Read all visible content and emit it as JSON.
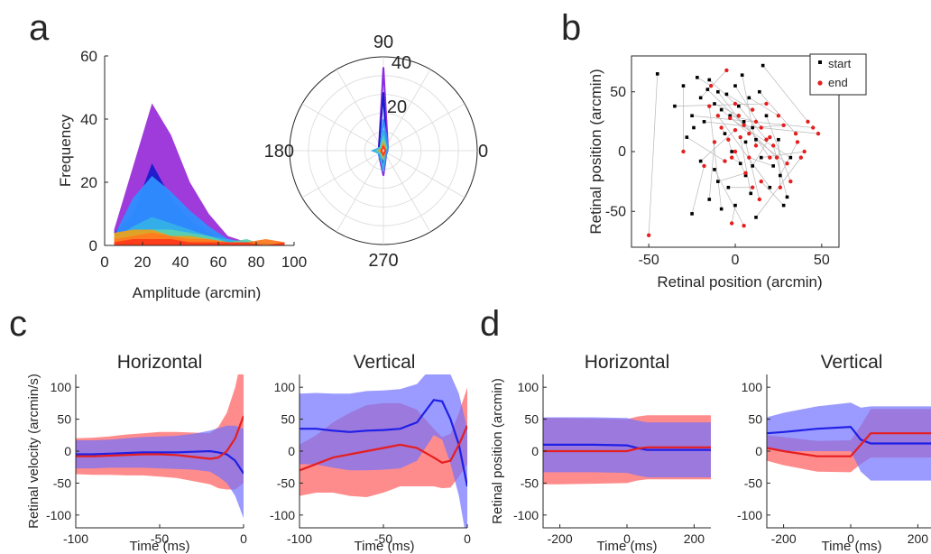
{
  "panels": {
    "a": "a",
    "b": "b",
    "c": "c",
    "d": "d"
  },
  "colors": {
    "blue": "#1f1fe6",
    "red": "#e61e1e",
    "blue_band": "#7070ff",
    "red_band": "#ff8080",
    "purple_fill": "#9b30d9"
  },
  "chart_data": [
    {
      "id": "a_hist",
      "type": "area",
      "title": "",
      "xlabel": "Amplitude (arcmin)",
      "ylabel": "Frequency",
      "xlim": [
        0,
        100
      ],
      "ylim": [
        0,
        60
      ],
      "xticks": [
        0,
        20,
        40,
        60,
        80,
        100
      ],
      "yticks": [
        0,
        20,
        40,
        60
      ],
      "x": [
        5,
        15,
        25,
        35,
        45,
        55,
        65,
        75,
        85,
        95
      ],
      "series": [
        {
          "color": "#9b30d9",
          "values": [
            5,
            25,
            45,
            35,
            20,
            10,
            3,
            1,
            0,
            0
          ]
        },
        {
          "color": "#1a1acc",
          "values": [
            4,
            10,
            26,
            15,
            8,
            4,
            1,
            0,
            0,
            0
          ]
        },
        {
          "color": "#2f8fff",
          "values": [
            3,
            15,
            22,
            17,
            11,
            6,
            2,
            1,
            0,
            0
          ]
        },
        {
          "color": "#35b0e8",
          "values": [
            2,
            6,
            9,
            7,
            5,
            3,
            2,
            1,
            1,
            0
          ]
        },
        {
          "color": "#5ad0b0",
          "values": [
            2,
            4,
            5,
            5,
            4,
            3,
            1,
            2,
            0,
            0
          ]
        },
        {
          "color": "#e8a020",
          "values": [
            4,
            5,
            5,
            3,
            3,
            2,
            1,
            1,
            0,
            0
          ]
        },
        {
          "color": "#ff7a20",
          "values": [
            2,
            3,
            4,
            3,
            2,
            2,
            1,
            1,
            2,
            1
          ]
        },
        {
          "color": "#ff3a1a",
          "values": [
            1,
            2,
            2,
            2,
            1,
            1,
            1,
            1,
            0,
            1
          ]
        }
      ]
    },
    {
      "id": "a_polar",
      "type": "line",
      "title": "",
      "angle_labels": [
        "90",
        "180",
        "0",
        "270"
      ],
      "rtick_labels": [
        "20",
        "40"
      ],
      "rmax": 45,
      "angles": [
        0,
        45,
        90,
        135,
        180,
        225,
        270,
        315
      ],
      "series": [
        {
          "color": "#8a2be2",
          "values": [
            2,
            3,
            40,
            3,
            2,
            3,
            12,
            2
          ]
        },
        {
          "color": "#1a1acc",
          "values": [
            1,
            2,
            28,
            3,
            1,
            2,
            6,
            1
          ]
        },
        {
          "color": "#2f8fff",
          "values": [
            2,
            3,
            15,
            2,
            2,
            3,
            8,
            2
          ]
        },
        {
          "color": "#35b0e8",
          "values": [
            1,
            2,
            10,
            2,
            5,
            2,
            10,
            1
          ]
        },
        {
          "color": "#5ad0b0",
          "values": [
            1,
            2,
            6,
            2,
            3,
            2,
            4,
            1
          ]
        },
        {
          "color": "#e8a020",
          "values": [
            1,
            1,
            4,
            1,
            2,
            1,
            3,
            1
          ]
        },
        {
          "color": "#ff3a1a",
          "values": [
            1,
            1,
            2,
            1,
            1,
            1,
            2,
            1
          ]
        }
      ]
    },
    {
      "id": "b_scatter",
      "type": "scatter",
      "title": "",
      "xlabel": "Retinal position (arcmin)",
      "ylabel": "Retinal position (arcmin)",
      "xlim": [
        -60,
        60
      ],
      "ylim": [
        -80,
        80
      ],
      "xticks": [
        -50,
        0,
        50
      ],
      "yticks": [
        50,
        0,
        -50
      ],
      "legend": {
        "position": "top-right",
        "entries": [
          "start",
          "end"
        ]
      },
      "series": [
        {
          "name": "start",
          "color": "#000000",
          "points": [
            [
              -45,
              65
            ],
            [
              -30,
              55
            ],
            [
              -22,
              62
            ],
            [
              -20,
              45
            ],
            [
              -15,
              60
            ],
            [
              -12,
              40
            ],
            [
              -10,
              50
            ],
            [
              -8,
              35
            ],
            [
              -5,
              48
            ],
            [
              -3,
              30
            ],
            [
              0,
              55
            ],
            [
              2,
              38
            ],
            [
              5,
              25
            ],
            [
              8,
              45
            ],
            [
              10,
              20
            ],
            [
              12,
              10
            ],
            [
              14,
              50
            ],
            [
              15,
              -5
            ],
            [
              -25,
              30
            ],
            [
              -18,
              25
            ],
            [
              -6,
              15
            ],
            [
              -2,
              0
            ],
            [
              3,
              -10
            ],
            [
              6,
              -20
            ],
            [
              9,
              -35
            ],
            [
              -10,
              -25
            ],
            [
              -15,
              -40
            ],
            [
              -25,
              -52
            ],
            [
              20,
              -30
            ],
            [
              28,
              -45
            ],
            [
              30,
              -38
            ],
            [
              25,
              10
            ],
            [
              18,
              30
            ],
            [
              -12,
              -15
            ],
            [
              0,
              -45
            ],
            [
              12,
              -55
            ],
            [
              16,
              72
            ],
            [
              -35,
              38
            ],
            [
              -28,
              12
            ],
            [
              22,
              -12
            ],
            [
              4,
              64
            ],
            [
              -8,
              -48
            ],
            [
              -20,
              -8
            ],
            [
              10,
              -12
            ],
            [
              -4,
              -30
            ],
            [
              26,
              -20
            ],
            [
              32,
              -5
            ],
            [
              -16,
              52
            ],
            [
              6,
              8
            ],
            [
              -24,
              20
            ]
          ]
        },
        {
          "name": "end",
          "color": "#e61e1e",
          "points": [
            [
              -50,
              -70
            ],
            [
              -30,
              0
            ],
            [
              -14,
              55
            ],
            [
              -5,
              68
            ],
            [
              0,
              40
            ],
            [
              2,
              30
            ],
            [
              5,
              22
            ],
            [
              8,
              15
            ],
            [
              10,
              35
            ],
            [
              12,
              25
            ],
            [
              15,
              20
            ],
            [
              18,
              10
            ],
            [
              20,
              -5
            ],
            [
              25,
              30
            ],
            [
              28,
              22
            ],
            [
              30,
              -10
            ],
            [
              35,
              15
            ],
            [
              40,
              0
            ],
            [
              45,
              20
            ],
            [
              48,
              15
            ],
            [
              -8,
              20
            ],
            [
              -4,
              10
            ],
            [
              -2,
              -5
            ],
            [
              0,
              0
            ],
            [
              3,
              12
            ],
            [
              6,
              -18
            ],
            [
              -12,
              8
            ],
            [
              -18,
              -12
            ],
            [
              -10,
              30
            ],
            [
              15,
              -25
            ],
            [
              22,
              5
            ],
            [
              26,
              -30
            ],
            [
              32,
              -25
            ],
            [
              5,
              -62
            ],
            [
              -2,
              -60
            ],
            [
              38,
              -5
            ],
            [
              42,
              25
            ],
            [
              18,
              40
            ],
            [
              -6,
              -8
            ],
            [
              8,
              -5
            ],
            [
              12,
              5
            ],
            [
              -15,
              38
            ],
            [
              0,
              18
            ],
            [
              20,
              12
            ],
            [
              10,
              -30
            ],
            [
              36,
              8
            ],
            [
              -3,
              28
            ],
            [
              24,
              -5
            ],
            [
              14,
              -40
            ]
          ]
        }
      ]
    },
    {
      "id": "c_horizontal",
      "type": "line",
      "title": "Horizontal",
      "xlabel": "Time (ms)",
      "ylabel": "Retinal velocity (arcmin/s)",
      "xlim": [
        -100,
        0
      ],
      "ylim": [
        -120,
        120
      ],
      "xticks": [
        -100,
        -50,
        0
      ],
      "yticks": [
        100,
        50,
        0,
        -50,
        -100
      ],
      "x": [
        -100,
        -90,
        -80,
        -70,
        -60,
        -50,
        -40,
        -30,
        -20,
        -15,
        -10,
        -5,
        0
      ],
      "series": [
        {
          "color": "#1f1fe6",
          "mean": [
            -5,
            -5,
            -4,
            -3,
            -2,
            -2,
            -2,
            -1,
            0,
            -2,
            -5,
            -15,
            -35
          ],
          "band": [
            22,
            22,
            22,
            23,
            24,
            25,
            26,
            28,
            32,
            38,
            45,
            55,
            70
          ]
        },
        {
          "color": "#e61e1e",
          "mean": [
            -8,
            -8,
            -7,
            -6,
            -5,
            -5,
            -6,
            -9,
            -12,
            -10,
            0,
            20,
            55
          ],
          "band": [
            28,
            29,
            30,
            32,
            33,
            35,
            36,
            38,
            40,
            48,
            60,
            80,
            105
          ]
        }
      ]
    },
    {
      "id": "c_vertical",
      "type": "line",
      "title": "Vertical",
      "xlabel": "Time (ms)",
      "ylabel": "",
      "xlim": [
        -100,
        0
      ],
      "ylim": [
        -120,
        120
      ],
      "xticks": [
        -100,
        -50,
        0
      ],
      "yticks": [
        100,
        50,
        0,
        -50,
        -100
      ],
      "x": [
        -100,
        -90,
        -80,
        -70,
        -60,
        -50,
        -40,
        -30,
        -20,
        -15,
        -10,
        -5,
        0
      ],
      "series": [
        {
          "color": "#1f1fe6",
          "mean": [
            35,
            35,
            32,
            30,
            32,
            33,
            35,
            45,
            80,
            78,
            50,
            10,
            -55
          ],
          "band": [
            55,
            56,
            58,
            60,
            62,
            62,
            62,
            60,
            55,
            60,
            70,
            80,
            90
          ]
        },
        {
          "color": "#e61e1e",
          "mean": [
            -30,
            -20,
            -10,
            -5,
            0,
            5,
            10,
            5,
            -10,
            -18,
            -15,
            10,
            40
          ],
          "band": [
            40,
            45,
            55,
            65,
            72,
            70,
            65,
            60,
            45,
            40,
            42,
            50,
            60
          ]
        }
      ]
    },
    {
      "id": "d_horizontal",
      "type": "line",
      "title": "Horizontal",
      "xlabel": "Time (ms)",
      "ylabel": "Retinal position (arcmin)",
      "xlim": [
        -250,
        250
      ],
      "ylim": [
        -120,
        120
      ],
      "xticks": [
        -200,
        0,
        200
      ],
      "yticks": [
        100,
        50,
        0,
        -50,
        -100
      ],
      "x": [
        -250,
        -200,
        -100,
        0,
        30,
        60,
        100,
        200,
        250
      ],
      "series": [
        {
          "color": "#1f1fe6",
          "mean": [
            10,
            10,
            10,
            9,
            5,
            2,
            2,
            2,
            2
          ],
          "band": [
            43,
            43,
            43,
            43,
            43,
            43,
            43,
            43,
            43
          ]
        },
        {
          "color": "#e61e1e",
          "mean": [
            0,
            0,
            0,
            0,
            4,
            6,
            6,
            6,
            6
          ],
          "band": [
            52,
            52,
            51,
            50,
            50,
            50,
            50,
            50,
            50
          ]
        }
      ]
    },
    {
      "id": "d_vertical",
      "type": "line",
      "title": "Vertical",
      "xlabel": "Time (ms)",
      "ylabel": "",
      "xlim": [
        -250,
        250
      ],
      "ylim": [
        -120,
        120
      ],
      "xticks": [
        -200,
        0,
        200
      ],
      "yticks": [
        100,
        50,
        0,
        -50,
        -100
      ],
      "x": [
        -250,
        -200,
        -100,
        0,
        30,
        60,
        100,
        200,
        250
      ],
      "series": [
        {
          "color": "#1f1fe6",
          "mean": [
            28,
            30,
            35,
            38,
            18,
            12,
            12,
            12,
            12
          ],
          "band": [
            25,
            30,
            35,
            38,
            50,
            58,
            58,
            58,
            58
          ]
        },
        {
          "color": "#e61e1e",
          "mean": [
            5,
            0,
            -8,
            -8,
            10,
            28,
            28,
            28,
            28
          ],
          "band": [
            20,
            22,
            24,
            25,
            30,
            38,
            38,
            38,
            38
          ]
        }
      ]
    }
  ]
}
